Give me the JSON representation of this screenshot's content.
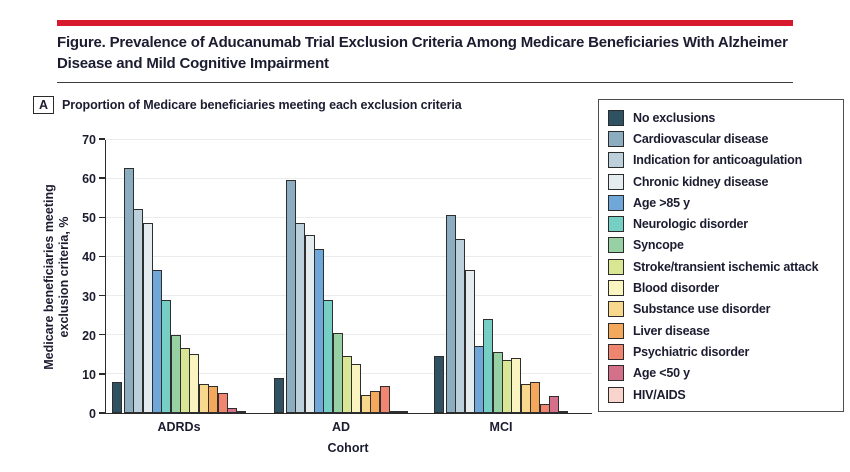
{
  "figure": {
    "title": "Figure. Prevalence of Aducanumab Trial Exclusion Criteria Among Medicare Beneficiaries With Alzheimer Disease and Mild Cognitive Impairment",
    "panel_label": "A",
    "panel_caption": "Proportion of Medicare beneficiaries meeting each exclusion criteria",
    "accent_color": "#D7182D"
  },
  "chart_data": {
    "type": "bar",
    "title": "Proportion of Medicare beneficiaries meeting each exclusion criteria",
    "categories": [
      "ADRDs",
      "AD",
      "MCI"
    ],
    "xlabel": "Cohort",
    "ylabel": "Medicare beneficiaries meeting\nexclusion criteria, %",
    "ylim": [
      0,
      70
    ],
    "yticks": [
      0,
      10,
      20,
      30,
      40,
      50,
      60,
      70
    ],
    "grid": true,
    "legend_position": "right",
    "series": [
      {
        "name": "No exclusions",
        "color": "#2E5262",
        "values": [
          8,
          9,
          14.5
        ]
      },
      {
        "name": "Cardiovascular disease",
        "color": "#8CADC0",
        "values": [
          62.5,
          59.5,
          50.5
        ]
      },
      {
        "name": "Indication for anticoagulation",
        "color": "#BCD0DB",
        "values": [
          52,
          48.5,
          44.5
        ]
      },
      {
        "name": "Chronic kidney disease",
        "color": "#E4ECEF",
        "values": [
          48.5,
          45.5,
          36.5
        ]
      },
      {
        "name": "Age >85 y",
        "color": "#6FA8D8",
        "values": [
          36.5,
          42,
          17
        ]
      },
      {
        "name": "Neurologic disorder",
        "color": "#76CFC5",
        "values": [
          29,
          29,
          24
        ]
      },
      {
        "name": "Syncope",
        "color": "#97D1A3",
        "values": [
          20,
          20.5,
          15.5
        ]
      },
      {
        "name": "Stroke/transient ischemic attack",
        "color": "#D9E794",
        "values": [
          16.5,
          14.5,
          13.5
        ]
      },
      {
        "name": "Blood disorder",
        "color": "#FAF5C0",
        "values": [
          15,
          12.5,
          14
        ]
      },
      {
        "name": "Substance use disorder",
        "color": "#F8D88C",
        "values": [
          7.5,
          4.5,
          7.5
        ]
      },
      {
        "name": "Liver disease",
        "color": "#F4A85C",
        "values": [
          7,
          5.5,
          8
        ]
      },
      {
        "name": "Psychiatric disorder",
        "color": "#F08672",
        "values": [
          5,
          7,
          2.2
        ]
      },
      {
        "name": "Age <50 y",
        "color": "#D4708A",
        "values": [
          1.2,
          0.4,
          4.3
        ]
      },
      {
        "name": "HIV/AIDS",
        "color": "#F8D4CC",
        "values": [
          0.3,
          0.15,
          0.3
        ]
      }
    ]
  }
}
